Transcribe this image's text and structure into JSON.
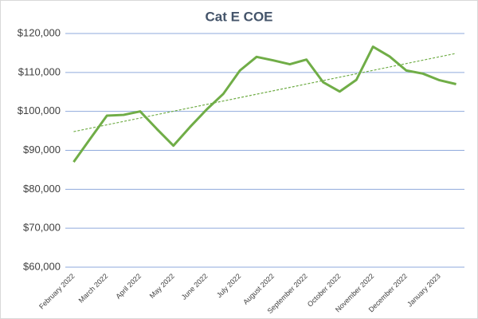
{
  "chart_data": {
    "type": "line",
    "title": "Cat E COE",
    "categories": [
      "February 2022",
      null,
      "March 2022",
      null,
      "April 2022",
      null,
      "May 2022",
      null,
      "June 2022",
      null,
      "July 2022",
      null,
      "August 2022",
      null,
      "September 2022",
      null,
      "October 2022",
      null,
      "November 2022",
      null,
      "December 2022",
      null,
      "January 2023",
      null
    ],
    "series": [
      {
        "name": "Cat E COE",
        "color": "#70ad47",
        "values": [
          87000,
          93000,
          98900,
          99100,
          100000,
          95500,
          91200,
          96000,
          100500,
          104500,
          110500,
          114000,
          113100,
          112100,
          113300,
          107500,
          105100,
          108100,
          116600,
          114100,
          110500,
          109700,
          108000,
          107000
        ]
      }
    ],
    "trendline": {
      "color": "#70ad47",
      "values": [
        94800,
        114900
      ]
    },
    "ylim": [
      60000,
      120000
    ],
    "yticks": [
      {
        "value": 60000,
        "label": "$60,000"
      },
      {
        "value": 70000,
        "label": "$70,000"
      },
      {
        "value": 80000,
        "label": "$80,000"
      },
      {
        "value": 90000,
        "label": "$90,000"
      },
      {
        "value": 100000,
        "label": "$100,000"
      },
      {
        "value": 110000,
        "label": "$110,000"
      },
      {
        "value": 120000,
        "label": "$120,000"
      }
    ],
    "grid": true
  }
}
